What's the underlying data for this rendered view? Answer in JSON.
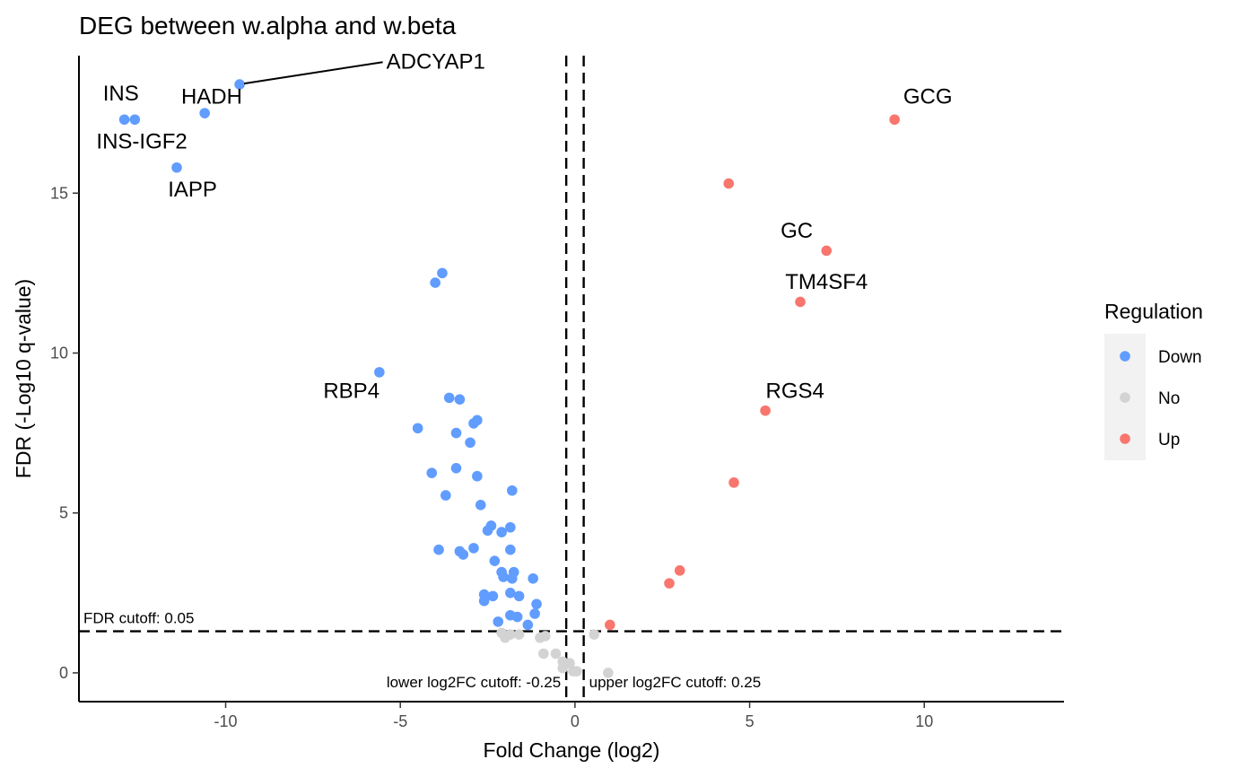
{
  "chart_data": {
    "type": "scatter",
    "title": "DEG between w.alpha and w.beta",
    "xlabel": "Fold Change (log2)",
    "ylabel": "FDR (-Log10 q-value)",
    "xlim": [
      -14.2,
      14.0
    ],
    "ylim": [
      -0.9,
      19.3
    ],
    "xticks": [
      -10,
      -5,
      0,
      5,
      10
    ],
    "yticks": [
      0,
      5,
      10,
      15
    ],
    "grid": false,
    "legend": {
      "title": "Regulation",
      "placement": "right",
      "entries": [
        {
          "name": "Down",
          "color": "#619CFF"
        },
        {
          "name": "No",
          "color": "#D3D3D3"
        },
        {
          "name": "Up",
          "color": "#F8766D"
        }
      ]
    },
    "cutoffs": {
      "fdr": {
        "value": 1.3,
        "label": "FDR cutoff: 0.05"
      },
      "lower_log2fc": {
        "value": -0.25,
        "label": "lower log2FC cutoff: -0.25"
      },
      "upper_log2fc": {
        "value": 0.25,
        "label": "upper log2FC cutoff: 0.25"
      }
    },
    "series": [
      {
        "name": "Down",
        "color": "#619CFF",
        "points": [
          [
            -9.6,
            18.4
          ],
          [
            -12.9,
            17.3
          ],
          [
            -12.6,
            17.3
          ],
          [
            -10.6,
            17.5
          ],
          [
            -11.4,
            15.8
          ],
          [
            -3.8,
            12.5
          ],
          [
            -4.0,
            12.2
          ],
          [
            -5.6,
            9.4
          ],
          [
            -3.6,
            8.6
          ],
          [
            -3.3,
            8.55
          ],
          [
            -2.8,
            7.9
          ],
          [
            -2.9,
            7.8
          ],
          [
            -4.5,
            7.65
          ],
          [
            -3.4,
            7.5
          ],
          [
            -3.0,
            7.2
          ],
          [
            -4.1,
            6.25
          ],
          [
            -3.4,
            6.4
          ],
          [
            -2.8,
            6.15
          ],
          [
            -3.7,
            5.55
          ],
          [
            -1.8,
            5.7
          ],
          [
            -2.7,
            5.25
          ],
          [
            -2.4,
            4.6
          ],
          [
            -1.85,
            4.55
          ],
          [
            -2.5,
            4.45
          ],
          [
            -2.1,
            4.4
          ],
          [
            -3.9,
            3.85
          ],
          [
            -3.3,
            3.8
          ],
          [
            -3.2,
            3.7
          ],
          [
            -2.9,
            3.9
          ],
          [
            -1.85,
            3.85
          ],
          [
            -2.3,
            3.5
          ],
          [
            -1.6,
            2.4
          ],
          [
            -2.1,
            3.15
          ],
          [
            -1.75,
            3.15
          ],
          [
            -2.05,
            3.0
          ],
          [
            -1.8,
            2.95
          ],
          [
            -1.2,
            2.95
          ],
          [
            -2.6,
            2.45
          ],
          [
            -2.35,
            2.4
          ],
          [
            -2.6,
            2.25
          ],
          [
            -1.85,
            2.5
          ],
          [
            -1.1,
            2.15
          ],
          [
            -1.85,
            1.8
          ],
          [
            -1.65,
            1.75
          ],
          [
            -1.15,
            1.85
          ],
          [
            -2.2,
            1.6
          ],
          [
            -1.35,
            1.5
          ]
        ]
      },
      {
        "name": "No",
        "color": "#D3D3D3",
        "points": [
          [
            -2.1,
            1.25
          ],
          [
            -2.0,
            1.1
          ],
          [
            -1.85,
            1.2
          ],
          [
            -1.6,
            1.2
          ],
          [
            -1.0,
            1.1
          ],
          [
            -0.85,
            1.15
          ],
          [
            -0.9,
            0.6
          ],
          [
            -0.55,
            0.6
          ],
          [
            -0.35,
            0.35
          ],
          [
            -0.15,
            0.3
          ],
          [
            -0.35,
            0.15
          ],
          [
            -0.05,
            0.05
          ],
          [
            0.05,
            0.05
          ],
          [
            0.55,
            1.2
          ],
          [
            0.95,
            0.0
          ]
        ]
      },
      {
        "name": "Up",
        "color": "#F8766D",
        "points": [
          [
            9.15,
            17.3
          ],
          [
            4.4,
            15.3
          ],
          [
            7.2,
            13.2
          ],
          [
            6.45,
            11.6
          ],
          [
            5.45,
            8.2
          ],
          [
            4.55,
            5.95
          ],
          [
            3.0,
            3.2
          ],
          [
            2.7,
            2.8
          ],
          [
            1.0,
            1.5
          ]
        ]
      }
    ],
    "labels": [
      {
        "text": "ADCYAP1",
        "x": -9.6,
        "y": 18.4,
        "tx": -5.4,
        "ty": 18.9,
        "leader": true
      },
      {
        "text": "INS",
        "x": -12.9,
        "y": 17.3,
        "tx": -13.0,
        "ty": 17.9
      },
      {
        "text": "HADH",
        "x": -10.6,
        "y": 17.5,
        "tx": -10.4,
        "ty": 17.8
      },
      {
        "text": "INS-IGF2",
        "x": -12.6,
        "y": 17.3,
        "tx": -12.4,
        "ty": 16.4
      },
      {
        "text": "IAPP",
        "x": -11.4,
        "y": 15.8,
        "tx": -10.95,
        "ty": 14.9
      },
      {
        "text": "RBP4",
        "x": -5.6,
        "y": 9.4,
        "tx": -6.4,
        "ty": 8.6
      },
      {
        "text": "GCG",
        "x": 9.15,
        "y": 17.3,
        "tx": 10.1,
        "ty": 17.8
      },
      {
        "text": "GC",
        "x": 7.2,
        "y": 13.2,
        "tx": 6.35,
        "ty": 13.6
      },
      {
        "text": "TM4SF4",
        "x": 6.45,
        "y": 11.6,
        "tx": 7.2,
        "ty": 12.0
      },
      {
        "text": "RGS4",
        "x": 5.45,
        "y": 8.2,
        "tx": 6.3,
        "ty": 8.6
      }
    ]
  }
}
